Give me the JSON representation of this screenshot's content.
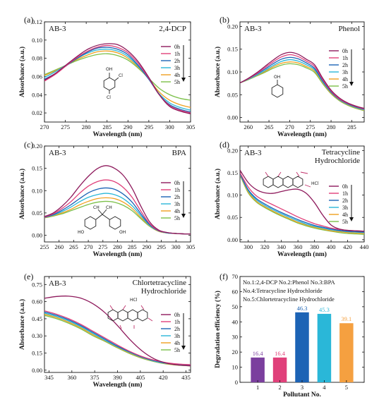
{
  "colors": {
    "0h": "#8e1a5c",
    "1h": "#e0407a",
    "2h": "#1c63b5",
    "3h": "#2ab7d8",
    "4h": "#f0a020",
    "5h": "#7cc04a",
    "bar1": "#7b3f9e",
    "bar2": "#e0407a",
    "bar3": "#1c63b5",
    "bar4": "#2ab7d8",
    "bar5": "#f5a040"
  },
  "chart_data": [
    {
      "panel": "(a)",
      "type": "line",
      "sample": "AB-3",
      "title": "2,4-DCP",
      "xlabel": "Wavelength (nm)",
      "ylabel": "Absorbance (a.u.)",
      "xlim": [
        270,
        305
      ],
      "ylim": [
        0.01,
        0.12
      ],
      "xticks": [
        "270",
        "275",
        "280",
        "285",
        "290",
        "295",
        "300",
        "305"
      ],
      "yticks": [
        "0.02",
        "0.04",
        "0.06",
        "0.08",
        "0.10",
        "0.12"
      ],
      "yticksv": [
        0.02,
        0.04,
        0.06,
        0.08,
        0.1,
        0.12
      ],
      "x": [
        270,
        272.5,
        275,
        277.5,
        280,
        282.5,
        285,
        287.5,
        290,
        292.5,
        295,
        297.5,
        300,
        302.5,
        305
      ],
      "series": [
        {
          "name": "0h",
          "values": [
            0.056,
            0.063,
            0.072,
            0.081,
            0.089,
            0.094,
            0.096,
            0.095,
            0.088,
            0.076,
            0.059,
            0.04,
            0.027,
            0.022,
            0.019
          ]
        },
        {
          "name": "1h",
          "values": [
            0.055,
            0.062,
            0.071,
            0.08,
            0.087,
            0.092,
            0.094,
            0.092,
            0.086,
            0.074,
            0.058,
            0.04,
            0.028,
            0.023,
            0.02
          ]
        },
        {
          "name": "2h",
          "values": [
            0.057,
            0.063,
            0.071,
            0.079,
            0.086,
            0.091,
            0.092,
            0.09,
            0.084,
            0.072,
            0.057,
            0.04,
            0.029,
            0.024,
            0.021
          ]
        },
        {
          "name": "3h",
          "values": [
            0.059,
            0.065,
            0.072,
            0.079,
            0.085,
            0.089,
            0.09,
            0.088,
            0.082,
            0.071,
            0.057,
            0.041,
            0.031,
            0.026,
            0.023
          ]
        },
        {
          "name": "4h",
          "values": [
            0.061,
            0.066,
            0.072,
            0.078,
            0.083,
            0.087,
            0.088,
            0.086,
            0.08,
            0.07,
            0.057,
            0.043,
            0.034,
            0.029,
            0.026
          ]
        },
        {
          "name": "5h",
          "values": [
            0.062,
            0.067,
            0.072,
            0.077,
            0.081,
            0.084,
            0.085,
            0.083,
            0.078,
            0.069,
            0.058,
            0.047,
            0.04,
            0.036,
            0.034
          ]
        }
      ]
    },
    {
      "panel": "(b)",
      "type": "line",
      "sample": "AB-3",
      "title": "Phenol",
      "xlabel": "Wavelength (nm)",
      "ylabel": "Absorbance (a.u.)",
      "xlim": [
        258,
        288
      ],
      "ylim": [
        -0.01,
        0.21
      ],
      "xticks": [
        "260",
        "265",
        "270",
        "275",
        "280",
        "285"
      ],
      "yticks": [
        "0.00",
        "0.05",
        "0.10",
        "0.15",
        "0.20"
      ],
      "yticksv": [
        0.0,
        0.05,
        0.1,
        0.15,
        0.2
      ],
      "x": [
        258,
        260,
        262,
        264,
        266,
        268,
        270,
        272,
        274,
        276,
        278,
        280,
        282,
        284,
        286,
        288
      ],
      "series": [
        {
          "name": "0h",
          "values": [
            0.076,
            0.086,
            0.098,
            0.112,
            0.126,
            0.138,
            0.143,
            0.139,
            0.128,
            0.116,
            0.086,
            0.06,
            0.043,
            0.032,
            0.025,
            0.02
          ]
        },
        {
          "name": "1h",
          "values": [
            0.076,
            0.085,
            0.096,
            0.109,
            0.122,
            0.133,
            0.138,
            0.134,
            0.124,
            0.112,
            0.083,
            0.058,
            0.041,
            0.031,
            0.024,
            0.019
          ]
        },
        {
          "name": "2h",
          "values": [
            0.076,
            0.085,
            0.095,
            0.106,
            0.118,
            0.128,
            0.132,
            0.129,
            0.12,
            0.108,
            0.08,
            0.056,
            0.04,
            0.03,
            0.023,
            0.018
          ]
        },
        {
          "name": "3h",
          "values": [
            0.076,
            0.084,
            0.093,
            0.103,
            0.114,
            0.123,
            0.127,
            0.124,
            0.116,
            0.105,
            0.078,
            0.055,
            0.039,
            0.029,
            0.022,
            0.017
          ]
        },
        {
          "name": "4h",
          "values": [
            0.076,
            0.084,
            0.092,
            0.101,
            0.111,
            0.119,
            0.122,
            0.12,
            0.112,
            0.102,
            0.076,
            0.053,
            0.038,
            0.028,
            0.021,
            0.016
          ]
        },
        {
          "name": "5h",
          "values": [
            0.076,
            0.083,
            0.091,
            0.099,
            0.108,
            0.115,
            0.118,
            0.116,
            0.109,
            0.099,
            0.074,
            0.052,
            0.037,
            0.027,
            0.02,
            0.015
          ]
        }
      ]
    },
    {
      "panel": "(c)",
      "type": "line",
      "sample": "AB-3",
      "title": "BPA",
      "xlabel": "Wavelength (nm)",
      "ylabel": "Absorbance (a.u.)",
      "xlim": [
        255,
        305
      ],
      "ylim": [
        -0.015,
        0.2
      ],
      "xticks": [
        "255",
        "260",
        "265",
        "270",
        "275",
        "280",
        "285",
        "290",
        "295",
        "300",
        "305"
      ],
      "yticks": [
        "0.00",
        "0.05",
        "0.10",
        "0.15",
        "0.20"
      ],
      "yticksv": [
        0.0,
        0.05,
        0.1,
        0.15,
        0.2
      ],
      "x": [
        255,
        258,
        261,
        264,
        267,
        270,
        273,
        276,
        279,
        282,
        285,
        288,
        291,
        294,
        297,
        300,
        303,
        305
      ],
      "series": [
        {
          "name": "0h",
          "values": [
            0.042,
            0.05,
            0.065,
            0.085,
            0.11,
            0.132,
            0.149,
            0.156,
            0.15,
            0.134,
            0.105,
            0.065,
            0.03,
            0.012,
            0.006,
            0.004,
            0.003,
            0.003
          ]
        },
        {
          "name": "1h",
          "values": [
            0.041,
            0.048,
            0.06,
            0.075,
            0.094,
            0.11,
            0.12,
            0.124,
            0.12,
            0.107,
            0.085,
            0.054,
            0.026,
            0.011,
            0.006,
            0.004,
            0.003,
            0.003
          ]
        },
        {
          "name": "2h",
          "values": [
            0.04,
            0.046,
            0.056,
            0.068,
            0.082,
            0.095,
            0.103,
            0.106,
            0.103,
            0.092,
            0.074,
            0.048,
            0.024,
            0.01,
            0.006,
            0.004,
            0.003,
            0.003
          ]
        },
        {
          "name": "3h",
          "values": [
            0.04,
            0.045,
            0.053,
            0.063,
            0.075,
            0.085,
            0.091,
            0.094,
            0.091,
            0.082,
            0.066,
            0.044,
            0.022,
            0.01,
            0.005,
            0.004,
            0.003,
            0.003
          ]
        },
        {
          "name": "4h",
          "values": [
            0.039,
            0.044,
            0.05,
            0.058,
            0.068,
            0.076,
            0.082,
            0.084,
            0.082,
            0.074,
            0.06,
            0.04,
            0.021,
            0.009,
            0.005,
            0.004,
            0.003,
            0.003
          ]
        },
        {
          "name": "5h",
          "values": [
            0.039,
            0.043,
            0.048,
            0.055,
            0.062,
            0.069,
            0.074,
            0.076,
            0.074,
            0.067,
            0.055,
            0.037,
            0.02,
            0.009,
            0.005,
            0.004,
            0.003,
            0.003
          ]
        }
      ]
    },
    {
      "panel": "(d)",
      "type": "line",
      "sample": "AB-3",
      "title": "Tetracycline Hydrochloride",
      "title_lines": [
        "Tetracycline",
        "Hydrochloride"
      ],
      "xlabel": "Wavelength (nm)",
      "ylabel": "Absorbance (a.u.)",
      "xlim": [
        290,
        440
      ],
      "ylim": [
        -0.005,
        0.21
      ],
      "xticks": [
        "300",
        "320",
        "340",
        "360",
        "380",
        "400",
        "420",
        "440"
      ],
      "yticks": [
        "0.00",
        "0.05",
        "0.10",
        "0.15",
        "0.20"
      ],
      "yticksv": [
        0.0,
        0.05,
        0.1,
        0.15,
        0.2
      ],
      "x": [
        290,
        300,
        310,
        320,
        330,
        340,
        350,
        360,
        370,
        380,
        390,
        400,
        410,
        420,
        430,
        440
      ],
      "series": [
        {
          "name": "0h",
          "values": [
            0.156,
            0.128,
            0.112,
            0.105,
            0.104,
            0.108,
            0.112,
            0.113,
            0.104,
            0.083,
            0.055,
            0.033,
            0.024,
            0.021,
            0.02,
            0.019
          ]
        },
        {
          "name": "1h",
          "values": [
            0.15,
            0.118,
            0.098,
            0.087,
            0.078,
            0.069,
            0.06,
            0.051,
            0.043,
            0.036,
            0.031,
            0.026,
            0.023,
            0.021,
            0.02,
            0.019
          ]
        },
        {
          "name": "2h",
          "values": [
            0.148,
            0.112,
            0.092,
            0.08,
            0.07,
            0.061,
            0.053,
            0.045,
            0.038,
            0.032,
            0.028,
            0.024,
            0.021,
            0.019,
            0.018,
            0.017
          ]
        },
        {
          "name": "3h",
          "values": [
            0.147,
            0.11,
            0.089,
            0.077,
            0.067,
            0.058,
            0.05,
            0.042,
            0.035,
            0.03,
            0.026,
            0.022,
            0.02,
            0.018,
            0.017,
            0.016
          ]
        },
        {
          "name": "4h",
          "values": [
            0.146,
            0.107,
            0.086,
            0.074,
            0.064,
            0.055,
            0.047,
            0.039,
            0.033,
            0.028,
            0.024,
            0.02,
            0.018,
            0.016,
            0.015,
            0.014
          ]
        },
        {
          "name": "5h",
          "values": [
            0.145,
            0.105,
            0.084,
            0.072,
            0.062,
            0.053,
            0.045,
            0.037,
            0.031,
            0.026,
            0.022,
            0.019,
            0.016,
            0.014,
            0.013,
            0.012
          ]
        }
      ]
    },
    {
      "panel": "(e)",
      "type": "line",
      "sample": "AB-3",
      "title": "Chlortetracycline Hydrochloride",
      "title_lines": [
        "Chlortetracycline",
        "Hydrochloride"
      ],
      "xlabel": "Wavelength (nm)",
      "ylabel": "Absorbance (a.u.)",
      "xlim": [
        342,
        438
      ],
      "ylim": [
        -0.02,
        0.82
      ],
      "xticks": [
        "345",
        "360",
        "375",
        "390",
        "405",
        "420",
        "435"
      ],
      "yticks": [
        "0.00",
        "0.15",
        "0.30",
        "0.45",
        "0.60",
        "0.75"
      ],
      "yticksv": [
        0.0,
        0.15,
        0.3,
        0.45,
        0.6,
        0.75
      ],
      "x": [
        342,
        350,
        358,
        366,
        374,
        382,
        390,
        398,
        406,
        414,
        422,
        430,
        438
      ],
      "series": [
        {
          "name": "0h",
          "values": [
            0.63,
            0.645,
            0.648,
            0.63,
            0.58,
            0.5,
            0.39,
            0.27,
            0.17,
            0.1,
            0.062,
            0.045,
            0.038
          ]
        },
        {
          "name": "1h",
          "values": [
            0.52,
            0.49,
            0.45,
            0.4,
            0.34,
            0.28,
            0.22,
            0.165,
            0.12,
            0.088,
            0.066,
            0.054,
            0.048
          ]
        },
        {
          "name": "2h",
          "values": [
            0.51,
            0.48,
            0.44,
            0.39,
            0.33,
            0.27,
            0.21,
            0.16,
            0.115,
            0.084,
            0.062,
            0.05,
            0.044
          ]
        },
        {
          "name": "3h",
          "values": [
            0.5,
            0.47,
            0.43,
            0.38,
            0.32,
            0.26,
            0.205,
            0.155,
            0.112,
            0.08,
            0.059,
            0.047,
            0.041
          ]
        },
        {
          "name": "4h",
          "values": [
            0.49,
            0.46,
            0.42,
            0.37,
            0.31,
            0.255,
            0.2,
            0.15,
            0.108,
            0.078,
            0.056,
            0.045,
            0.039
          ]
        },
        {
          "name": "5h",
          "values": [
            0.48,
            0.45,
            0.41,
            0.36,
            0.3,
            0.25,
            0.195,
            0.145,
            0.104,
            0.075,
            0.054,
            0.043,
            0.037
          ]
        }
      ]
    },
    {
      "panel": "(f)",
      "type": "bar",
      "xlabel": "Pollutant No.",
      "ylabel": "Degradation efficiency (%)",
      "ylim": [
        0,
        70
      ],
      "yticks": [
        "0",
        "10",
        "20",
        "30",
        "40",
        "50",
        "60",
        "70"
      ],
      "yticksv": [
        0,
        10,
        20,
        30,
        40,
        50,
        60,
        70
      ],
      "categories": [
        "1",
        "2",
        "3",
        "4",
        "5"
      ],
      "values": [
        16.4,
        16.4,
        46.3,
        45.3,
        39.1
      ],
      "value_labels": [
        "16.4",
        "16.4",
        "46.3",
        "45.3",
        "39.1"
      ],
      "notes": [
        "No.1:2,4-DCP  No.2:Phenol  No.3:BPA",
        "No.4:Tetracycline Hydrochloride",
        "No.5:Chlortetracycline Hydrochloride"
      ]
    }
  ],
  "structures": {
    "dcp": {
      "oh": "OH",
      "cl1": "Cl",
      "cl2": "Cl"
    },
    "phenol": {
      "oh": "OH"
    },
    "bpa": {
      "ch3a": "CH",
      "ch3b": "CH",
      "ho": "HO",
      "oh": "OH"
    },
    "tc": {
      "hcl": "HCl"
    },
    "ctc": {
      "hcl": "HCl"
    }
  }
}
